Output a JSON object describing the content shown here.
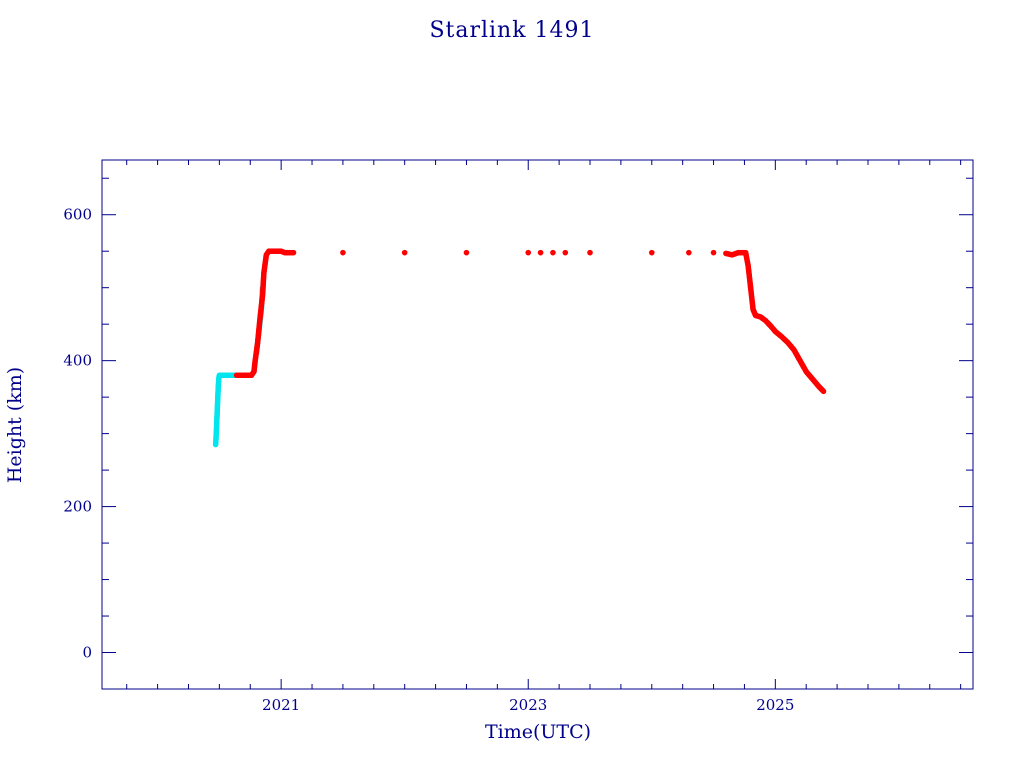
{
  "chart_data": {
    "type": "scatter",
    "title": "Starlink 1491",
    "xlabel": "Time(UTC)",
    "ylabel": "Height (km)",
    "xlim": [
      2019.55,
      2026.6
    ],
    "ylim": [
      -50,
      675
    ],
    "x_ticks": [
      {
        "value": 2021,
        "label": "2021"
      },
      {
        "value": 2023,
        "label": "2023"
      },
      {
        "value": 2025,
        "label": "2025"
      }
    ],
    "y_ticks": [
      {
        "value": 0,
        "label": "0"
      },
      {
        "value": 200,
        "label": "200"
      },
      {
        "value": 400,
        "label": "400"
      },
      {
        "value": 600,
        "label": "600"
      }
    ],
    "grid": false,
    "colors": {
      "axis": "#00008b",
      "series_red": "#ff0000",
      "series_cyan": "#00e5ee"
    },
    "series": [
      {
        "color": "#00e5ee",
        "points": [
          [
            2020.47,
            285
          ],
          [
            2020.475,
            300
          ],
          [
            2020.48,
            320
          ],
          [
            2020.485,
            340
          ],
          [
            2020.49,
            360
          ],
          [
            2020.495,
            375
          ],
          [
            2020.5,
            380
          ],
          [
            2020.52,
            380
          ],
          [
            2020.55,
            380
          ],
          [
            2020.58,
            380
          ],
          [
            2020.61,
            380
          ],
          [
            2020.63,
            380
          ],
          [
            2020.8,
            410
          ],
          [
            2020.82,
            440
          ],
          [
            2020.84,
            470
          ],
          [
            2020.85,
            500
          ]
        ]
      },
      {
        "color": "#ff0000",
        "points": [
          [
            2020.64,
            380
          ],
          [
            2020.67,
            380
          ],
          [
            2020.7,
            380
          ],
          [
            2020.73,
            380
          ],
          [
            2020.76,
            380
          ],
          [
            2020.78,
            385
          ],
          [
            2020.79,
            400
          ],
          [
            2020.81,
            425
          ],
          [
            2020.83,
            460
          ],
          [
            2020.85,
            490
          ],
          [
            2020.86,
            520
          ],
          [
            2020.88,
            545
          ],
          [
            2020.9,
            550
          ],
          [
            2020.95,
            550
          ],
          [
            2021.0,
            550
          ],
          [
            2021.03,
            548
          ],
          [
            2021.1,
            548
          ],
          [
            2021.5,
            548
          ],
          [
            2022.0,
            548
          ],
          [
            2022.5,
            548
          ],
          [
            2023.0,
            548
          ],
          [
            2023.1,
            548
          ],
          [
            2023.2,
            548
          ],
          [
            2023.3,
            548
          ],
          [
            2023.5,
            548
          ],
          [
            2024.0,
            548
          ],
          [
            2024.3,
            548
          ],
          [
            2024.5,
            548
          ],
          [
            2024.6,
            547
          ],
          [
            2024.65,
            545
          ],
          [
            2024.7,
            548
          ],
          [
            2024.76,
            548
          ],
          [
            2024.78,
            530
          ],
          [
            2024.8,
            500
          ],
          [
            2024.82,
            470
          ],
          [
            2024.84,
            462
          ],
          [
            2024.88,
            460
          ],
          [
            2024.92,
            455
          ],
          [
            2024.96,
            448
          ],
          [
            2025.0,
            440
          ],
          [
            2025.05,
            433
          ],
          [
            2025.1,
            425
          ],
          [
            2025.15,
            415
          ],
          [
            2025.2,
            400
          ],
          [
            2025.25,
            385
          ],
          [
            2025.3,
            375
          ],
          [
            2025.35,
            365
          ],
          [
            2025.39,
            358
          ]
        ]
      }
    ]
  }
}
